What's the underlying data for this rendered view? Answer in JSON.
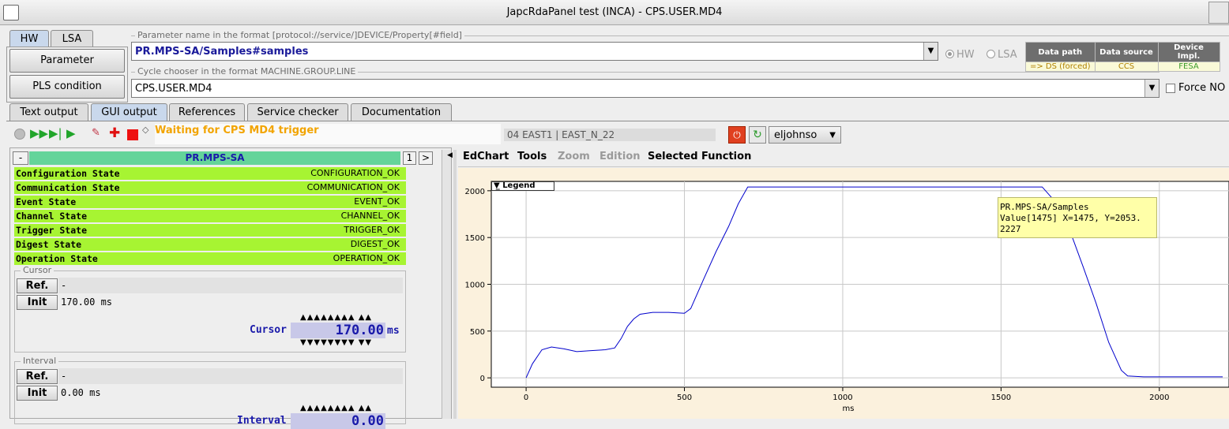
{
  "window": {
    "title": "JapcRdaPanel test (INCA)  - CPS.USER.MD4"
  },
  "mode_tabs": [
    "HW",
    "LSA"
  ],
  "side_buttons": {
    "parameter": "Parameter",
    "pls": "PLS condition"
  },
  "param_group": {
    "label": "Parameter name in the format [protocol://service/]DEVICE/Property[#field]",
    "value": "PR.MPS-SA/Samples#samples"
  },
  "cycle_group": {
    "label": "Cycle chooser in the format MACHINE.GROUP.LINE",
    "value": "CPS.USER.MD4"
  },
  "radios": {
    "hw": "HW",
    "lsa": "LSA"
  },
  "force_label": "Force NO",
  "info_table": {
    "headers": [
      "Data path",
      "Data source",
      "Device Impl."
    ],
    "values": [
      "=> DS (forced)",
      "CCS",
      "FESA"
    ],
    "value_colors": [
      "#b08000",
      "#b08000",
      "#3a9a2a"
    ]
  },
  "main_tabs": [
    "Text output",
    "GUI output",
    "References",
    "Service checker",
    "Documentation"
  ],
  "status": {
    "waiting": "Waiting for CPS MD4 trigger",
    "location": "04 EAST1 | EAST_N_22",
    "user": "eljohnso"
  },
  "device": {
    "name": "PR.MPS-SA",
    "collapse": "-",
    "index": "1",
    "next": ">"
  },
  "states": [
    {
      "name": "Configuration State",
      "value": "CONFIGURATION_OK"
    },
    {
      "name": "Communication State",
      "value": "COMMUNICATION_OK"
    },
    {
      "name": "Event State",
      "value": "EVENT_OK"
    },
    {
      "name": "Channel State",
      "value": "CHANNEL_OK"
    },
    {
      "name": "Trigger State",
      "value": "TRIGGER_OK"
    },
    {
      "name": "Digest State",
      "value": "DIGEST_OK"
    },
    {
      "name": "Operation State",
      "value": "OPERATION_OK"
    }
  ],
  "cursor": {
    "group": "Cursor",
    "ref_btn": "Ref.",
    "ref_val": "-",
    "init_btn": "Init",
    "init_val": "170.00 ms",
    "label": "Cursor",
    "value": "170.00",
    "unit": "ms"
  },
  "interval": {
    "group": "Interval",
    "ref_btn": "Ref.",
    "ref_val": "-",
    "init_btn": "Init",
    "init_val": "0.00 ms",
    "label": "Interval",
    "value": "0.00"
  },
  "chart_menu": [
    "EdChart",
    "Tools",
    "Zoom",
    "Edition",
    "Selected Function"
  ],
  "chart_menu_disabled": [
    false,
    false,
    true,
    true,
    false
  ],
  "legend": "Legend",
  "tooltip": {
    "line1": "PR.MPS-SA/Samples",
    "line2": "Value[1475] X=1475, Y=2053.",
    "line3": "2227"
  },
  "chart_data": {
    "type": "line",
    "xlabel": "ms",
    "ylabel": "",
    "xlim": [
      -110,
      2220
    ],
    "ylim": [
      -100,
      2100
    ],
    "xticks": [
      0,
      500,
      1000,
      1500,
      2000
    ],
    "yticks": [
      0,
      500,
      1000,
      1500,
      2000
    ],
    "grid": true,
    "line_color": "#0000cc",
    "series": [
      {
        "x": [
          0,
          20,
          50,
          80,
          120,
          160,
          200,
          250,
          280,
          300,
          320,
          340,
          360,
          400,
          450,
          500,
          520,
          560,
          600,
          640,
          670,
          700,
          800,
          900,
          1000,
          1100,
          1200,
          1300,
          1400,
          1500,
          1600,
          1630,
          1680,
          1720,
          1760,
          1800,
          1840,
          1880,
          1900,
          1950,
          2000,
          2100,
          2200
        ],
        "y": [
          0,
          150,
          300,
          330,
          310,
          280,
          290,
          300,
          320,
          420,
          550,
          630,
          680,
          700,
          700,
          690,
          740,
          1050,
          1350,
          1620,
          1860,
          2040,
          2040,
          2040,
          2040,
          2040,
          2040,
          2040,
          2040,
          2040,
          2040,
          2040,
          1850,
          1550,
          1180,
          800,
          380,
          80,
          20,
          10,
          10,
          10,
          10
        ]
      }
    ]
  }
}
